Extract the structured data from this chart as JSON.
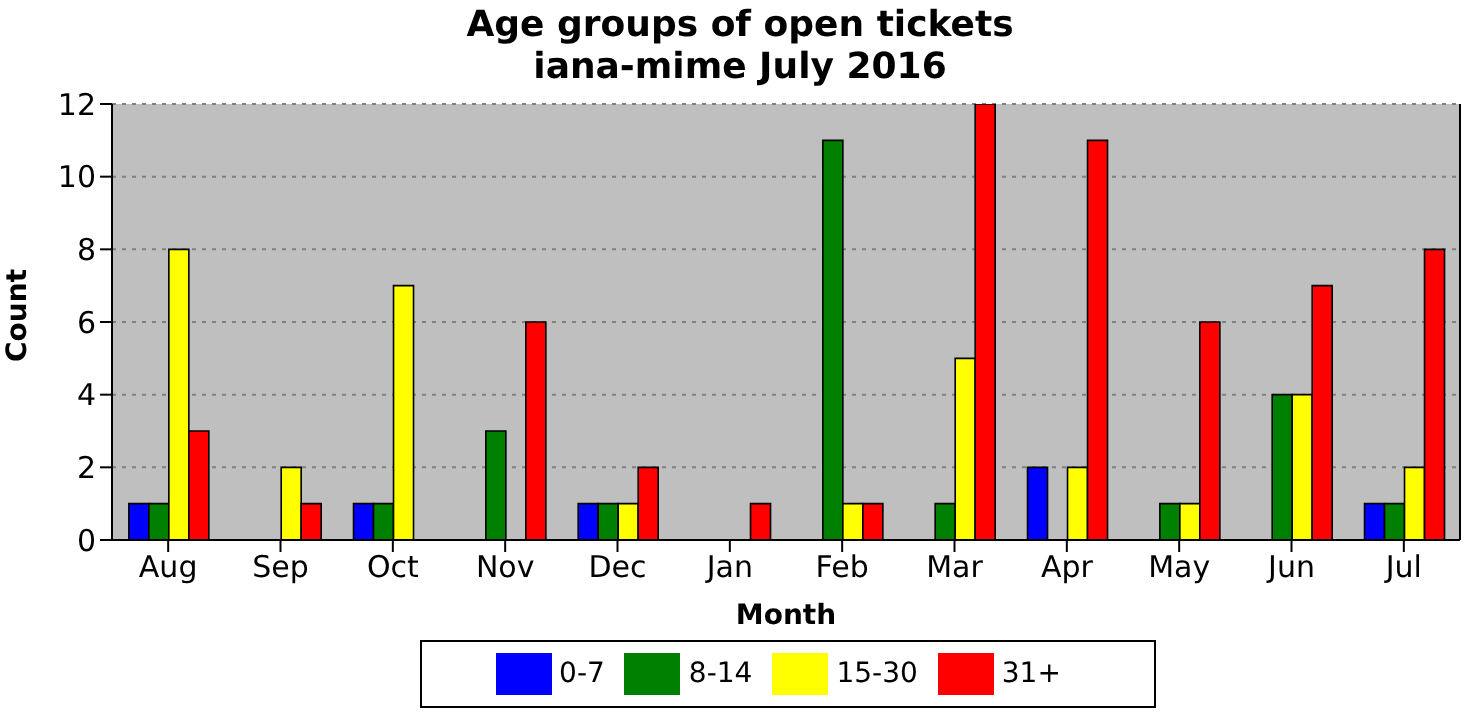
{
  "chart_data": {
    "type": "bar",
    "title": "Age groups of open tickets\niana-mime July 2016",
    "xlabel": "Month",
    "ylabel": "Count",
    "categories": [
      "Aug",
      "Sep",
      "Oct",
      "Nov",
      "Dec",
      "Jan",
      "Feb",
      "Mar",
      "Apr",
      "May",
      "Jun",
      "Jul"
    ],
    "series": [
      {
        "name": "0-7",
        "color": "#0000ff",
        "values": [
          1,
          0,
          1,
          0,
          1,
          0,
          0,
          0,
          2,
          0,
          0,
          1
        ]
      },
      {
        "name": "8-14",
        "color": "#008000",
        "values": [
          1,
          0,
          1,
          3,
          1,
          0,
          11,
          1,
          0,
          1,
          4,
          1
        ]
      },
      {
        "name": "15-30",
        "color": "#ffff00",
        "values": [
          8,
          2,
          7,
          0,
          1,
          0,
          1,
          5,
          2,
          1,
          4,
          2
        ]
      },
      {
        "name": "31+",
        "color": "#ff0000",
        "values": [
          3,
          1,
          0,
          6,
          2,
          1,
          1,
          12,
          11,
          6,
          7,
          8
        ]
      }
    ],
    "ylim": [
      0,
      12
    ],
    "yticks": [
      0,
      2,
      4,
      6,
      8,
      10,
      12
    ],
    "grid": "y",
    "legend": "bottom"
  }
}
